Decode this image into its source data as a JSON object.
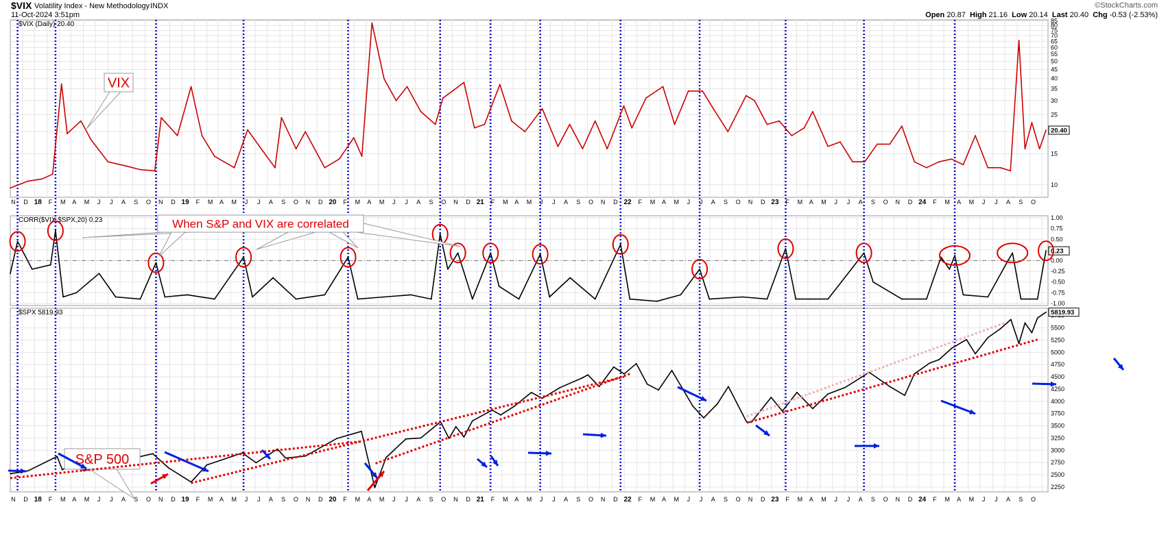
{
  "header": {
    "symbol": "$VIX",
    "name": "Volatility Index - New Methodology",
    "exchange": "INDX",
    "date": "11-Oct-2024 3:51pm",
    "brand": "©StockCharts.com",
    "open_label": "Open",
    "open": "20.87",
    "high_label": "High",
    "high": "21.16",
    "low_label": "Low",
    "low": "20.14",
    "last_label": "Last",
    "last": "20.40",
    "chg_label": "Chg",
    "chg": "-0.53 (-2.53%)"
  },
  "colors": {
    "red_series": "#cc0000",
    "black_series": "#000000",
    "annotation": "#e00000",
    "event_line": "#0000cc",
    "arrow_blue": "#0020e0",
    "grid": "#e4e4e4"
  },
  "x_axis": {
    "labels": [
      "N",
      "D",
      "18",
      "F",
      "M",
      "A",
      "M",
      "J",
      "J",
      "A",
      "S",
      "O",
      "N",
      "D",
      "19",
      "F",
      "M",
      "A",
      "M",
      "J",
      "J",
      "A",
      "S",
      "O",
      "N",
      "D",
      "20",
      "F",
      "M",
      "A",
      "M",
      "J",
      "J",
      "A",
      "S",
      "O",
      "N",
      "D",
      "21",
      "F",
      "M",
      "A",
      "M",
      "J",
      "J",
      "A",
      "S",
      "O",
      "N",
      "D",
      "22",
      "F",
      "M",
      "A",
      "M",
      "J",
      "J",
      "A",
      "S",
      "O",
      "N",
      "D",
      "23",
      "F",
      "M",
      "A",
      "M",
      "J",
      "J",
      "A",
      "S",
      "O",
      "N",
      "D",
      "24",
      "F",
      "M",
      "A",
      "M",
      "J",
      "J",
      "A",
      "S",
      "O"
    ],
    "year_labels": [
      "18",
      "19",
      "20",
      "21",
      "22",
      "23",
      "24"
    ]
  },
  "event_dates": [
    "2017-10-20",
    "2018-01-22",
    "2018-09-28",
    "2019-05-03",
    "2020-01-17",
    "2020-09-01",
    "2021-01-04",
    "2021-05-07",
    "2021-11-22",
    "2022-06-06",
    "2023-01-05",
    "2023-07-18",
    "2024-02-28"
  ],
  "annotations": {
    "vix_label": "VIX",
    "corr_label": "When S&P and VIX are correlated",
    "spx_label": "S&P 500"
  },
  "chart_data": [
    {
      "type": "line",
      "title": "$VIX (Daily) 20.40",
      "scale": "log",
      "ylim": [
        8.5,
        86
      ],
      "y_ticks": [
        10,
        15,
        20,
        25,
        30,
        35,
        40,
        45,
        50,
        55,
        60,
        65,
        70,
        75,
        80,
        85
      ],
      "last_value_label": "20.40",
      "x": [
        "2017-10-02",
        "2017-11-15",
        "2017-12-20",
        "2018-01-15",
        "2018-02-06",
        "2018-02-20",
        "2018-03-26",
        "2018-04-20",
        "2018-06-01",
        "2018-07-15",
        "2018-08-20",
        "2018-09-25",
        "2018-10-11",
        "2018-11-20",
        "2018-12-24",
        "2019-01-20",
        "2019-02-20",
        "2019-04-10",
        "2019-05-13",
        "2019-06-20",
        "2019-07-20",
        "2019-08-05",
        "2019-09-10",
        "2019-10-03",
        "2019-11-20",
        "2019-12-26",
        "2020-01-31",
        "2020-02-20",
        "2020-03-16",
        "2020-04-15",
        "2020-05-15",
        "2020-06-11",
        "2020-07-15",
        "2020-08-20",
        "2020-09-08",
        "2020-10-30",
        "2020-11-25",
        "2020-12-20",
        "2021-01-27",
        "2021-02-25",
        "2021-03-30",
        "2021-05-12",
        "2021-06-20",
        "2021-07-19",
        "2021-08-20",
        "2021-09-20",
        "2021-10-20",
        "2021-11-30",
        "2021-12-20",
        "2022-01-24",
        "2022-03-07",
        "2022-04-05",
        "2022-05-09",
        "2022-06-13",
        "2022-07-10",
        "2022-08-15",
        "2022-09-29",
        "2022-10-20",
        "2022-11-20",
        "2022-12-20",
        "2023-01-20",
        "2023-02-20",
        "2023-03-13",
        "2023-04-20",
        "2023-05-20",
        "2023-06-20",
        "2023-07-20",
        "2023-08-20",
        "2023-09-20",
        "2023-10-20",
        "2023-11-20",
        "2023-12-20",
        "2024-01-20",
        "2024-02-20",
        "2024-03-20",
        "2024-04-19",
        "2024-05-20",
        "2024-06-20",
        "2024-07-15",
        "2024-08-05",
        "2024-08-20",
        "2024-09-06",
        "2024-09-25",
        "2024-10-11"
      ],
      "series": [
        {
          "values": [
            9.6,
            10.5,
            10.8,
            11.5,
            37.3,
            19.5,
            23.0,
            18.0,
            13.5,
            12.8,
            12.2,
            12.0,
            24.0,
            19.0,
            36.0,
            19.0,
            14.5,
            12.5,
            20.5,
            15.5,
            12.5,
            24.0,
            16.0,
            20.0,
            12.5,
            14.0,
            18.5,
            14.5,
            82.7,
            40.0,
            30.0,
            36.0,
            26.0,
            22.0,
            31.0,
            38.0,
            21.0,
            22.0,
            37.0,
            23.0,
            20.0,
            27.0,
            16.5,
            22.0,
            16.0,
            23.0,
            16.0,
            28.0,
            21.0,
            31.0,
            36.0,
            22.0,
            34.0,
            34.0,
            27.0,
            20.0,
            32.0,
            30.0,
            22.0,
            23.0,
            19.0,
            21.0,
            26.0,
            16.5,
            17.5,
            13.5,
            13.5,
            17.0,
            17.0,
            21.5,
            13.5,
            12.5,
            13.5,
            14.0,
            13.0,
            19.0,
            12.5,
            12.5,
            12.0,
            65.7,
            16.0,
            22.5,
            16.0,
            20.4
          ]
        }
      ]
    },
    {
      "type": "line",
      "title": "CORR($VIX,$SPX,20) 0.23",
      "ylim": [
        -1.05,
        1.05
      ],
      "y_ticks": [
        1.0,
        0.75,
        0.5,
        0.25,
        0.0,
        -0.25,
        -0.5,
        -0.75,
        -1.0
      ],
      "last_value_label": "0.23",
      "zero_line": true,
      "x": [
        "2017-10-02",
        "2017-10-20",
        "2017-11-25",
        "2018-01-10",
        "2018-01-22",
        "2018-02-10",
        "2018-03-15",
        "2018-05-10",
        "2018-06-20",
        "2018-08-20",
        "2018-09-28",
        "2018-10-20",
        "2018-12-15",
        "2019-02-20",
        "2019-05-03",
        "2019-05-25",
        "2019-07-15",
        "2019-09-10",
        "2019-11-20",
        "2020-01-17",
        "2020-02-10",
        "2020-04-15",
        "2020-06-20",
        "2020-08-10",
        "2020-09-01",
        "2020-09-20",
        "2020-10-15",
        "2020-11-20",
        "2021-01-04",
        "2021-01-25",
        "2021-03-15",
        "2021-05-07",
        "2021-05-30",
        "2021-07-20",
        "2021-09-20",
        "2021-11-22",
        "2021-12-15",
        "2022-02-20",
        "2022-04-20",
        "2022-06-06",
        "2022-06-30",
        "2022-09-20",
        "2022-11-20",
        "2023-01-05",
        "2023-01-30",
        "2023-04-20",
        "2023-07-18",
        "2023-08-10",
        "2023-10-20",
        "2023-12-20",
        "2024-01-25",
        "2024-02-15",
        "2024-02-28",
        "2024-03-20",
        "2024-05-20",
        "2024-07-10",
        "2024-07-20",
        "2024-08-10",
        "2024-09-20",
        "2024-10-11"
      ],
      "series": [
        {
          "values": [
            -0.3,
            0.45,
            -0.2,
            -0.1,
            0.7,
            -0.85,
            -0.75,
            -0.3,
            -0.85,
            -0.9,
            -0.05,
            -0.85,
            -0.8,
            -0.9,
            0.08,
            -0.85,
            -0.4,
            -0.9,
            -0.8,
            0.08,
            -0.9,
            -0.85,
            -0.8,
            -0.9,
            0.62,
            -0.2,
            0.18,
            -0.9,
            0.18,
            -0.6,
            -0.9,
            0.15,
            -0.85,
            -0.4,
            -0.9,
            0.38,
            -0.9,
            -0.95,
            -0.8,
            -0.2,
            -0.9,
            -0.85,
            -0.9,
            0.28,
            -0.9,
            -0.9,
            0.18,
            -0.5,
            -0.9,
            -0.9,
            0.08,
            -0.2,
            0.12,
            -0.8,
            -0.85,
            0.02,
            0.18,
            -0.9,
            -0.9,
            0.23
          ]
        }
      ]
    },
    {
      "type": "line",
      "title": "$SPX 5819.93",
      "ylim": [
        2150,
        5900
      ],
      "y_ticks": [
        2250,
        2500,
        2750,
        3000,
        3250,
        3500,
        3750,
        4000,
        4250,
        4500,
        4750,
        5000,
        5250,
        5500,
        5750
      ],
      "last_value_label": "5819.93",
      "x": [
        "2017-10-02",
        "2017-11-15",
        "2018-01-26",
        "2018-02-08",
        "2018-03-10",
        "2018-04-02",
        "2018-06-01",
        "2018-07-15",
        "2018-09-20",
        "2018-10-29",
        "2018-12-24",
        "2019-02-01",
        "2019-04-30",
        "2019-06-03",
        "2019-07-26",
        "2019-08-15",
        "2019-10-03",
        "2019-12-20",
        "2020-02-19",
        "2020-03-23",
        "2020-04-20",
        "2020-06-08",
        "2020-07-15",
        "2020-09-02",
        "2020-09-23",
        "2020-10-10",
        "2020-10-30",
        "2020-11-20",
        "2021-01-08",
        "2021-01-29",
        "2021-03-04",
        "2021-04-15",
        "2021-05-12",
        "2021-06-25",
        "2021-08-20",
        "2021-09-02",
        "2021-09-30",
        "2021-11-05",
        "2021-12-01",
        "2021-12-31",
        "2022-01-27",
        "2022-02-24",
        "2022-03-29",
        "2022-05-20",
        "2022-06-16",
        "2022-07-20",
        "2022-08-16",
        "2022-09-30",
        "2022-10-12",
        "2022-11-30",
        "2022-12-28",
        "2023-02-02",
        "2023-03-13",
        "2023-04-20",
        "2023-06-01",
        "2023-07-31",
        "2023-09-20",
        "2023-10-27",
        "2023-11-20",
        "2023-12-28",
        "2024-01-20",
        "2024-02-20",
        "2024-03-28",
        "2024-04-19",
        "2024-05-20",
        "2024-06-20",
        "2024-07-16",
        "2024-08-05",
        "2024-08-20",
        "2024-09-06",
        "2024-09-20",
        "2024-10-11"
      ],
      "series": [
        {
          "values": [
            2520,
            2580,
            2872,
            2600,
            2750,
            2580,
            2720,
            2800,
            2930,
            2640,
            2350,
            2700,
            2945,
            2745,
            3025,
            2840,
            2880,
            3240,
            3386,
            2237,
            2850,
            3230,
            3250,
            3580,
            3240,
            3480,
            3270,
            3600,
            3820,
            3720,
            3900,
            4180,
            4060,
            4280,
            4480,
            4540,
            4300,
            4700,
            4560,
            4770,
            4350,
            4230,
            4630,
            3900,
            3660,
            3950,
            4300,
            3580,
            3570,
            4080,
            3800,
            4180,
            3850,
            4150,
            4280,
            4590,
            4300,
            4120,
            4560,
            4780,
            4850,
            5080,
            5260,
            4970,
            5300,
            5480,
            5670,
            5180,
            5600,
            5400,
            5700,
            5820
          ]
        }
      ]
    }
  ]
}
